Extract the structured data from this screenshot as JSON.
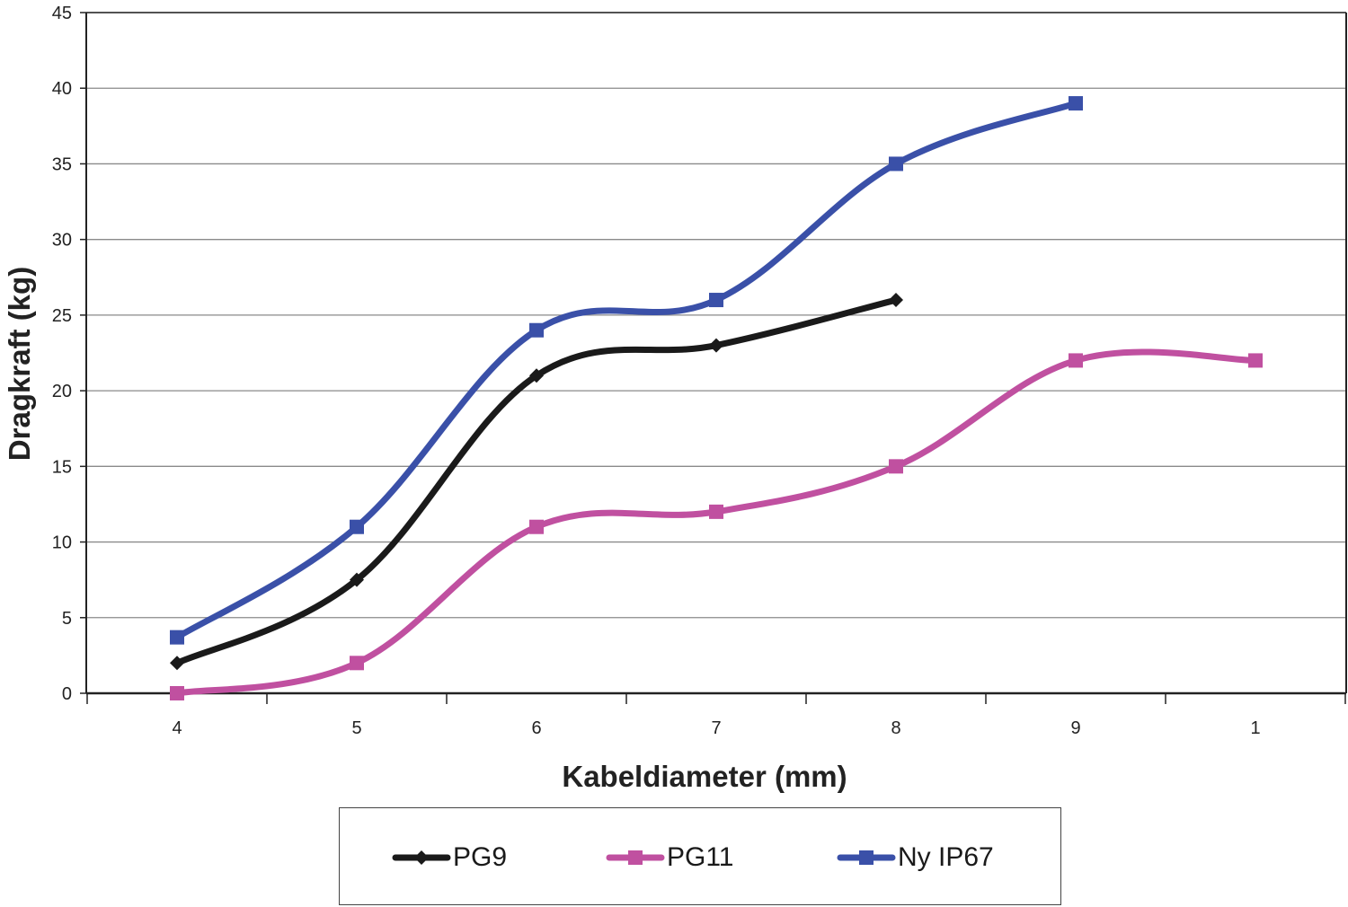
{
  "chart_data": {
    "type": "line",
    "xlabel": "Kabeldiameter (mm)",
    "ylabel": "Dragkraft (kg)",
    "categories": [
      "4",
      "5",
      "6",
      "7",
      "8",
      "9",
      "1"
    ],
    "ylim": [
      0,
      45
    ],
    "yticks": [
      0,
      5,
      10,
      15,
      20,
      25,
      30,
      35,
      40,
      45
    ],
    "grid": "horizontal",
    "legend_position": "bottom",
    "series": [
      {
        "name": "PG9",
        "color": "#1a1a1a",
        "marker": "diamond",
        "values": [
          2,
          7.5,
          21,
          23,
          26,
          null,
          null
        ]
      },
      {
        "name": "PG11",
        "color": "#c050a0",
        "marker": "square",
        "values": [
          0,
          2,
          11,
          12,
          15,
          22,
          22
        ]
      },
      {
        "name": "Ny IP67",
        "color": "#3a50a8",
        "marker": "square",
        "values": [
          3.7,
          11,
          24,
          26,
          35,
          39,
          null
        ]
      }
    ]
  }
}
